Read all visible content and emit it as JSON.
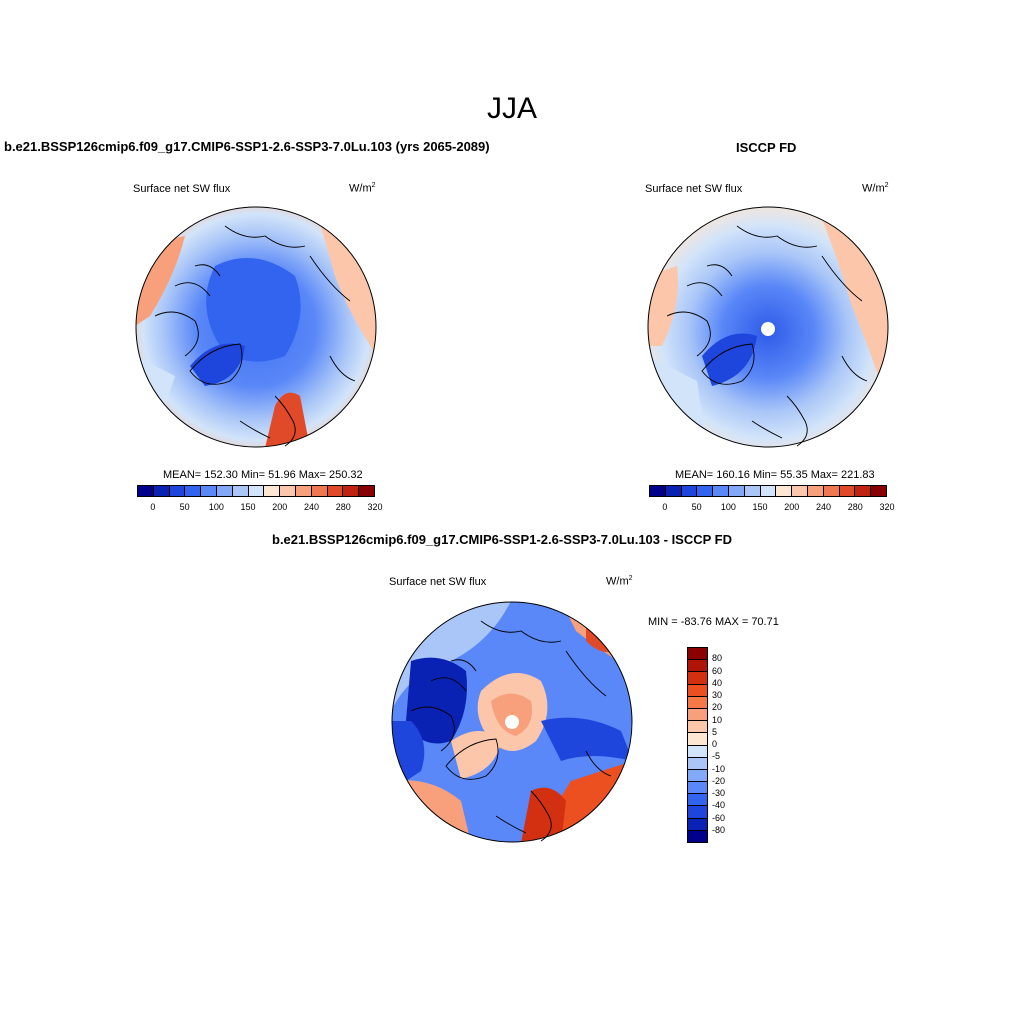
{
  "figure": {
    "title": "JJA"
  },
  "panels": {
    "model": {
      "heading": "b.e21.BSSP126cmip6.f09_g17.CMIP6-SSP1-2.6-SSP3-7.0Lu.103 (yrs 2065-2089)",
      "variable": "Surface net SW flux",
      "units_base": "W/m",
      "units_exp": "2",
      "stats": "MEAN= 152.30  Min=  51.96  Max= 250.32"
    },
    "obs": {
      "heading": "ISCCP FD",
      "variable": "Surface net SW flux",
      "units_base": "W/m",
      "units_exp": "2",
      "stats": "MEAN= 160.16  Min=  55.35  Max= 221.83"
    },
    "diff": {
      "heading": "b.e21.BSSP126cmip6.f09_g17.CMIP6-SSP1-2.6-SSP3-7.0Lu.103 - ISCCP FD",
      "variable": "Surface net SW flux",
      "units_base": "W/m",
      "units_exp": "2",
      "stats": "MIN = -83.76 MAX =  70.71"
    }
  },
  "colorbars": {
    "absolute": {
      "colors": [
        "#00008b",
        "#0a22b4",
        "#1e46dc",
        "#3264f0",
        "#5a88f8",
        "#82a8f8",
        "#aac6f8",
        "#d2e4fa",
        "#fde6d2",
        "#fcc6aa",
        "#f8a07c",
        "#f07850",
        "#e04a28",
        "#c02410",
        "#8b0000"
      ],
      "tick_labels": [
        "0",
        "50",
        "100",
        "150",
        "200",
        "240",
        "280",
        "320"
      ]
    },
    "difference": {
      "colors": [
        "#8b0000",
        "#b01408",
        "#d23010",
        "#ec5020",
        "#f47848",
        "#f8a07c",
        "#fcc6aa",
        "#fde6d2",
        "#d2e4fa",
        "#aac6f8",
        "#82a8f8",
        "#5a88f8",
        "#3264f0",
        "#1e46dc",
        "#0a22b4",
        "#00008b"
      ],
      "tick_labels": [
        "80",
        "60",
        "40",
        "30",
        "20",
        "10",
        "5",
        "0",
        "-5",
        "-10",
        "-20",
        "-30",
        "-40",
        "-60",
        "-80"
      ]
    }
  }
}
